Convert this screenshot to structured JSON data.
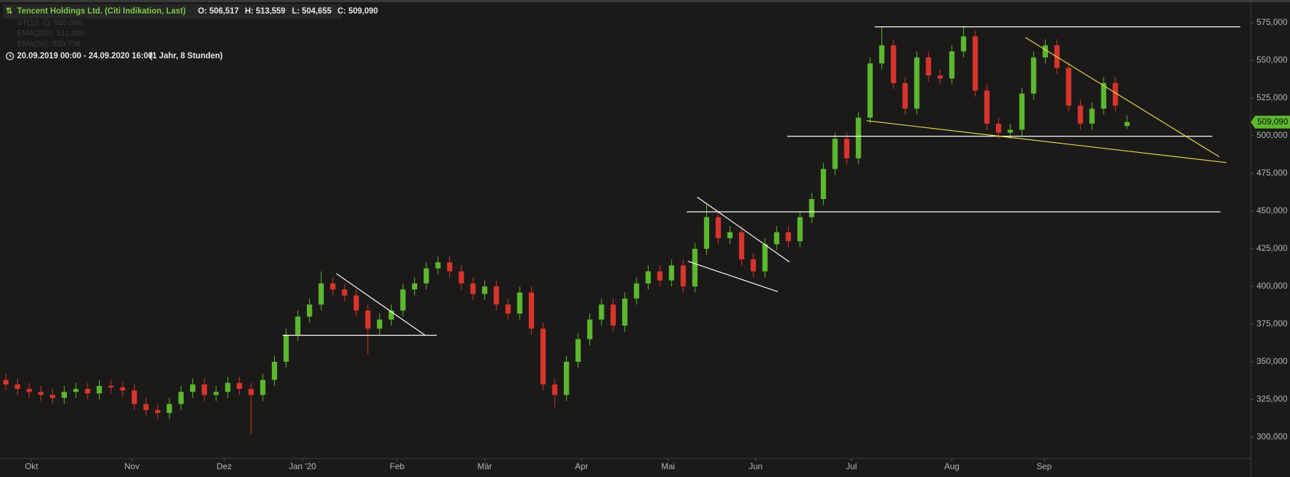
{
  "chart_data": {
    "type": "candlestick",
    "title": "Tencent Holdings Ltd. (Citi Indikation, Last)",
    "ohlc_header": [
      "O: 506,517",
      "H: 513,559",
      "L: 504,655",
      "C: 509,090"
    ],
    "indicators": [
      "ST(10, 2): 520,988",
      "EMA(200): 511,806",
      "EMA(50): 520,736"
    ],
    "period": "20.09.2019 00:00 - 24.09.2020 16:00",
    "period_note": "(1 Jahr, 8 Stunden)",
    "last_label": {
      "value": 509.09,
      "label": "509,090"
    },
    "up_color": "#5cb82e",
    "down_color": "#d9342b",
    "categories": [
      null,
      null,
      null,
      null,
      null,
      null,
      null,
      null,
      null,
      null,
      null,
      null,
      null,
      null,
      null,
      null,
      null,
      null,
      null,
      null,
      null,
      null,
      null,
      null,
      null,
      null,
      null,
      null,
      null,
      null,
      null,
      null,
      null,
      null,
      null,
      null,
      null,
      null,
      null,
      null,
      null,
      null,
      null,
      null,
      null,
      null,
      null,
      null,
      null,
      null,
      null,
      null,
      null,
      null,
      null,
      null,
      null,
      null,
      null,
      null,
      null,
      null,
      null,
      null,
      null,
      null,
      null,
      null,
      null,
      null,
      null,
      null,
      null,
      null,
      null,
      null,
      null,
      null,
      null,
      null,
      null,
      null,
      null,
      null,
      null,
      null,
      null,
      null,
      null,
      null,
      null,
      null,
      null,
      null,
      null,
      null,
      null
    ],
    "open": [
      338,
      335,
      332,
      330,
      328,
      326,
      330,
      332,
      329,
      334,
      333,
      331,
      322,
      318,
      316,
      322,
      330,
      335,
      328,
      330,
      336,
      332,
      328,
      338,
      350,
      368,
      380,
      388,
      402,
      398,
      394,
      384,
      372,
      378,
      384,
      398,
      402,
      412,
      416,
      410,
      402,
      395,
      400,
      388,
      382,
      396,
      372,
      335,
      328,
      350,
      365,
      378,
      388,
      374,
      392,
      402,
      410,
      404,
      414,
      400,
      425,
      446,
      432,
      436,
      418,
      410,
      428,
      436,
      430,
      446,
      458,
      478,
      498,
      485,
      512,
      548,
      560,
      535,
      518,
      552,
      540,
      538,
      556,
      566,
      530,
      508,
      502,
      504,
      528,
      552,
      560,
      545,
      520,
      508,
      518,
      535,
      506.517
    ],
    "high": [
      342,
      339,
      336,
      334,
      332,
      334,
      336,
      336,
      338,
      338,
      337,
      335,
      326,
      322,
      326,
      334,
      339,
      339,
      334,
      340,
      340,
      336,
      342,
      354,
      372,
      384,
      392,
      410,
      406,
      402,
      398,
      388,
      382,
      388,
      402,
      406,
      416,
      420,
      420,
      414,
      406,
      404,
      404,
      392,
      400,
      400,
      376,
      339,
      354,
      369,
      382,
      392,
      392,
      396,
      406,
      414,
      414,
      418,
      418,
      429,
      455,
      450,
      440,
      440,
      422,
      432,
      440,
      440,
      450,
      462,
      482,
      502,
      502,
      516,
      552,
      572,
      564,
      539,
      556,
      556,
      544,
      560,
      573,
      570,
      534,
      512,
      508,
      532,
      556,
      564,
      564,
      549,
      524,
      522,
      539,
      539,
      513.559
    ],
    "low": [
      331,
      328,
      326,
      324,
      322,
      322,
      326,
      325,
      325,
      329,
      327,
      318,
      314,
      312,
      312,
      318,
      326,
      324,
      324,
      326,
      328,
      302,
      324,
      334,
      346,
      364,
      376,
      384,
      394,
      390,
      380,
      355,
      368,
      374,
      380,
      394,
      398,
      408,
      406,
      398,
      391,
      391,
      384,
      378,
      378,
      368,
      331,
      320,
      324,
      346,
      361,
      374,
      370,
      370,
      388,
      398,
      400,
      400,
      396,
      396,
      421,
      428,
      428,
      414,
      406,
      406,
      424,
      426,
      426,
      442,
      454,
      474,
      481,
      481,
      508,
      544,
      531,
      514,
      514,
      536,
      534,
      534,
      552,
      526,
      504,
      498,
      498,
      500,
      524,
      548,
      541,
      516,
      504,
      504,
      514,
      516,
      504.655
    ],
    "close": [
      335,
      332,
      330,
      328,
      326,
      330,
      332,
      329,
      334,
      333,
      331,
      322,
      318,
      316,
      322,
      330,
      335,
      328,
      330,
      336,
      332,
      328,
      338,
      350,
      368,
      380,
      388,
      402,
      398,
      394,
      384,
      372,
      378,
      384,
      398,
      402,
      412,
      416,
      410,
      402,
      395,
      400,
      388,
      382,
      396,
      372,
      335,
      328,
      350,
      365,
      378,
      388,
      374,
      392,
      402,
      410,
      404,
      414,
      400,
      425,
      446,
      432,
      436,
      418,
      410,
      428,
      436,
      430,
      446,
      458,
      478,
      498,
      485,
      512,
      548,
      560,
      535,
      518,
      552,
      540,
      538,
      556,
      566,
      530,
      508,
      502,
      504,
      528,
      552,
      560,
      545,
      520,
      508,
      518,
      535,
      520,
      509.09
    ],
    "xlim": [
      -0.5,
      106.6
    ],
    "xticks": [
      {
        "value": 2.2,
        "label": "Okt"
      },
      {
        "value": 10.8,
        "label": "Nov"
      },
      {
        "value": 18.7,
        "label": "Dez"
      },
      {
        "value": 25.4,
        "label": "Jan '20"
      },
      {
        "value": 33.5,
        "label": "Feb"
      },
      {
        "value": 41.0,
        "label": "Mär"
      },
      {
        "value": 49.3,
        "label": "Apr"
      },
      {
        "value": 56.7,
        "label": "Mai"
      },
      {
        "value": 64.2,
        "label": "Jun"
      },
      {
        "value": 72.4,
        "label": "Jul"
      },
      {
        "value": 81.0,
        "label": "Aug"
      },
      {
        "value": 88.9,
        "label": "Sep"
      }
    ],
    "ylim": [
      285.8,
      590.1
    ],
    "yticks": [
      {
        "value": 300,
        "label": "300,000"
      },
      {
        "value": 325,
        "label": "325,000"
      },
      {
        "value": 350,
        "label": "350,000"
      },
      {
        "value": 375,
        "label": "375,000"
      },
      {
        "value": 400,
        "label": "400,000"
      },
      {
        "value": 425,
        "label": "425,000"
      },
      {
        "value": 450,
        "label": "450,000"
      },
      {
        "value": 475,
        "label": "475,000"
      },
      {
        "value": 500,
        "label": "500,000"
      },
      {
        "value": 525,
        "label": "525,000"
      },
      {
        "value": 550,
        "label": "550,000"
      },
      {
        "value": 575,
        "label": "575,000"
      }
    ],
    "drawings": [
      {
        "x": [
          23.7,
          36.9
        ],
        "y": [
          367.6,
          367.6
        ],
        "color": "#ffffff"
      },
      {
        "x": [
          28.3,
          35.9
        ],
        "y": [
          408.5,
          367.6
        ],
        "color": "#ffffff"
      },
      {
        "x": [
          59.2,
          67.1
        ],
        "y": [
          459.3,
          416.2
        ],
        "color": "#ffffff"
      },
      {
        "x": [
          58.4,
          66.1
        ],
        "y": [
          416.7,
          396.5
        ],
        "color": "#ffffff"
      },
      {
        "x": [
          58.3,
          104.0
        ],
        "y": [
          449.5,
          449.5
        ],
        "color": "#ffffff"
      },
      {
        "x": [
          66.9,
          103.3
        ],
        "y": [
          499.7,
          499.7
        ],
        "color": "#ffffff"
      },
      {
        "x": [
          74.4,
          105.7
        ],
        "y": [
          572.3,
          572.3
        ],
        "color": "#ffffff"
      },
      {
        "x": [
          73.7,
          104.5
        ],
        "y": [
          510.0,
          482.2
        ],
        "color": "#e6d84a"
      },
      {
        "x": [
          87.3,
          103.9
        ],
        "y": [
          565.2,
          486.0
        ],
        "color": "#e6d84a"
      }
    ]
  }
}
